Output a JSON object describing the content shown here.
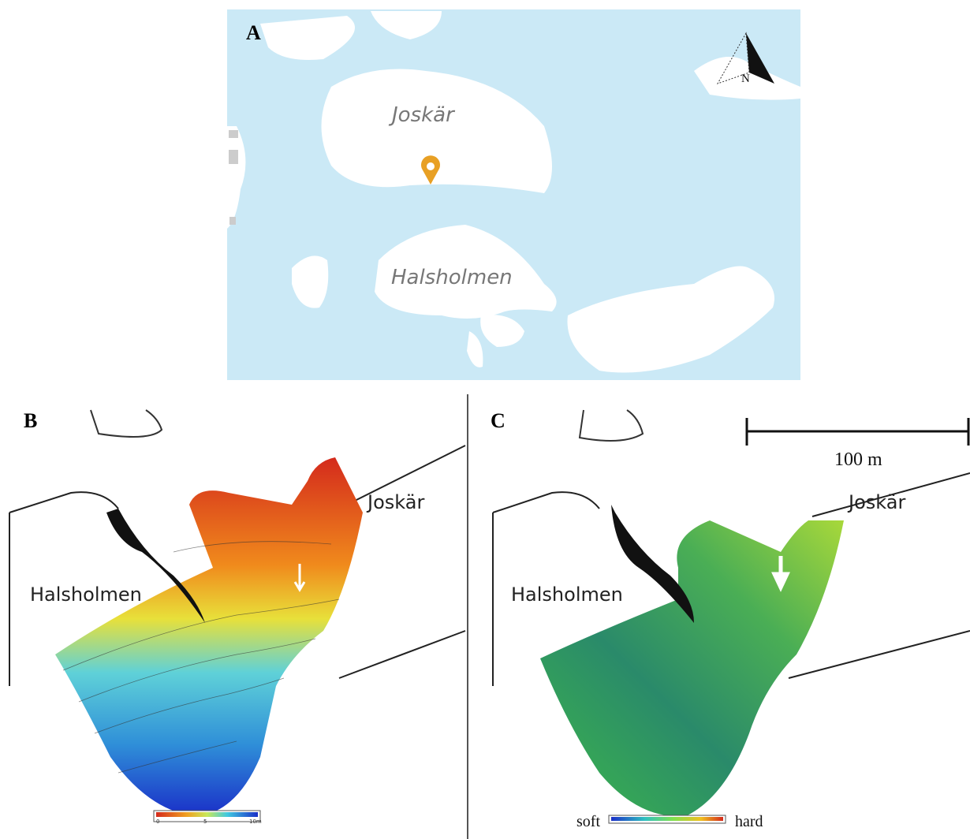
{
  "panels": [
    {
      "label": "A",
      "places": [
        "Joskär",
        "Halsholmen"
      ],
      "north": "N"
    },
    {
      "label": "B",
      "places": [
        "Halsholmen",
        "Joskär"
      ],
      "legend": {
        "ticks": [
          "0",
          "5",
          "10m"
        ]
      }
    },
    {
      "label": "C",
      "places": [
        "Halsholmen",
        "Joskär"
      ],
      "scale_bar": "100 m",
      "legend": {
        "low": "soft",
        "high": "hard"
      }
    }
  ]
}
